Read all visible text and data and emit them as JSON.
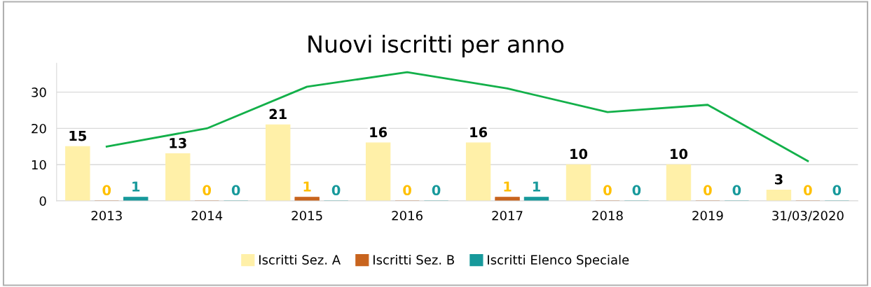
{
  "chart_data": {
    "type": "bar",
    "title": "Nuovi iscritti per anno",
    "categories": [
      "2013",
      "2014",
      "2015",
      "2016",
      "2017",
      "2018",
      "2019",
      "31/03/2020"
    ],
    "series": [
      {
        "name": "Iscritti Sez. A",
        "color": "#fff0a8",
        "values": [
          15,
          13,
          21,
          16,
          16,
          10,
          10,
          3
        ],
        "value_labels": [
          "15",
          "13",
          "21",
          "16",
          "16",
          "10",
          "10",
          "3"
        ]
      },
      {
        "name": "Iscritti Sez. B",
        "color": "#c8641e",
        "values": [
          0,
          0,
          1,
          0,
          1,
          0,
          0,
          0
        ],
        "value_labels": [
          "0",
          "0",
          "1",
          "0",
          "1",
          "0",
          "0",
          "0"
        ]
      },
      {
        "name": "Iscritti Elenco Speciale",
        "color": "#17999b",
        "values": [
          1,
          0,
          0,
          0,
          1,
          0,
          0,
          0
        ],
        "value_labels": [
          "1",
          "0",
          "0",
          "0",
          "1",
          "0",
          "0",
          "0"
        ]
      },
      {
        "type": "line",
        "color": "#13b04a",
        "values": [
          15,
          20,
          31.5,
          35.5,
          31,
          24.5,
          26.5,
          11
        ]
      }
    ],
    "ylim": [
      0,
      38
    ],
    "yticks": [
      0,
      10,
      20,
      30
    ],
    "grid": "y",
    "legend": "bottom"
  }
}
